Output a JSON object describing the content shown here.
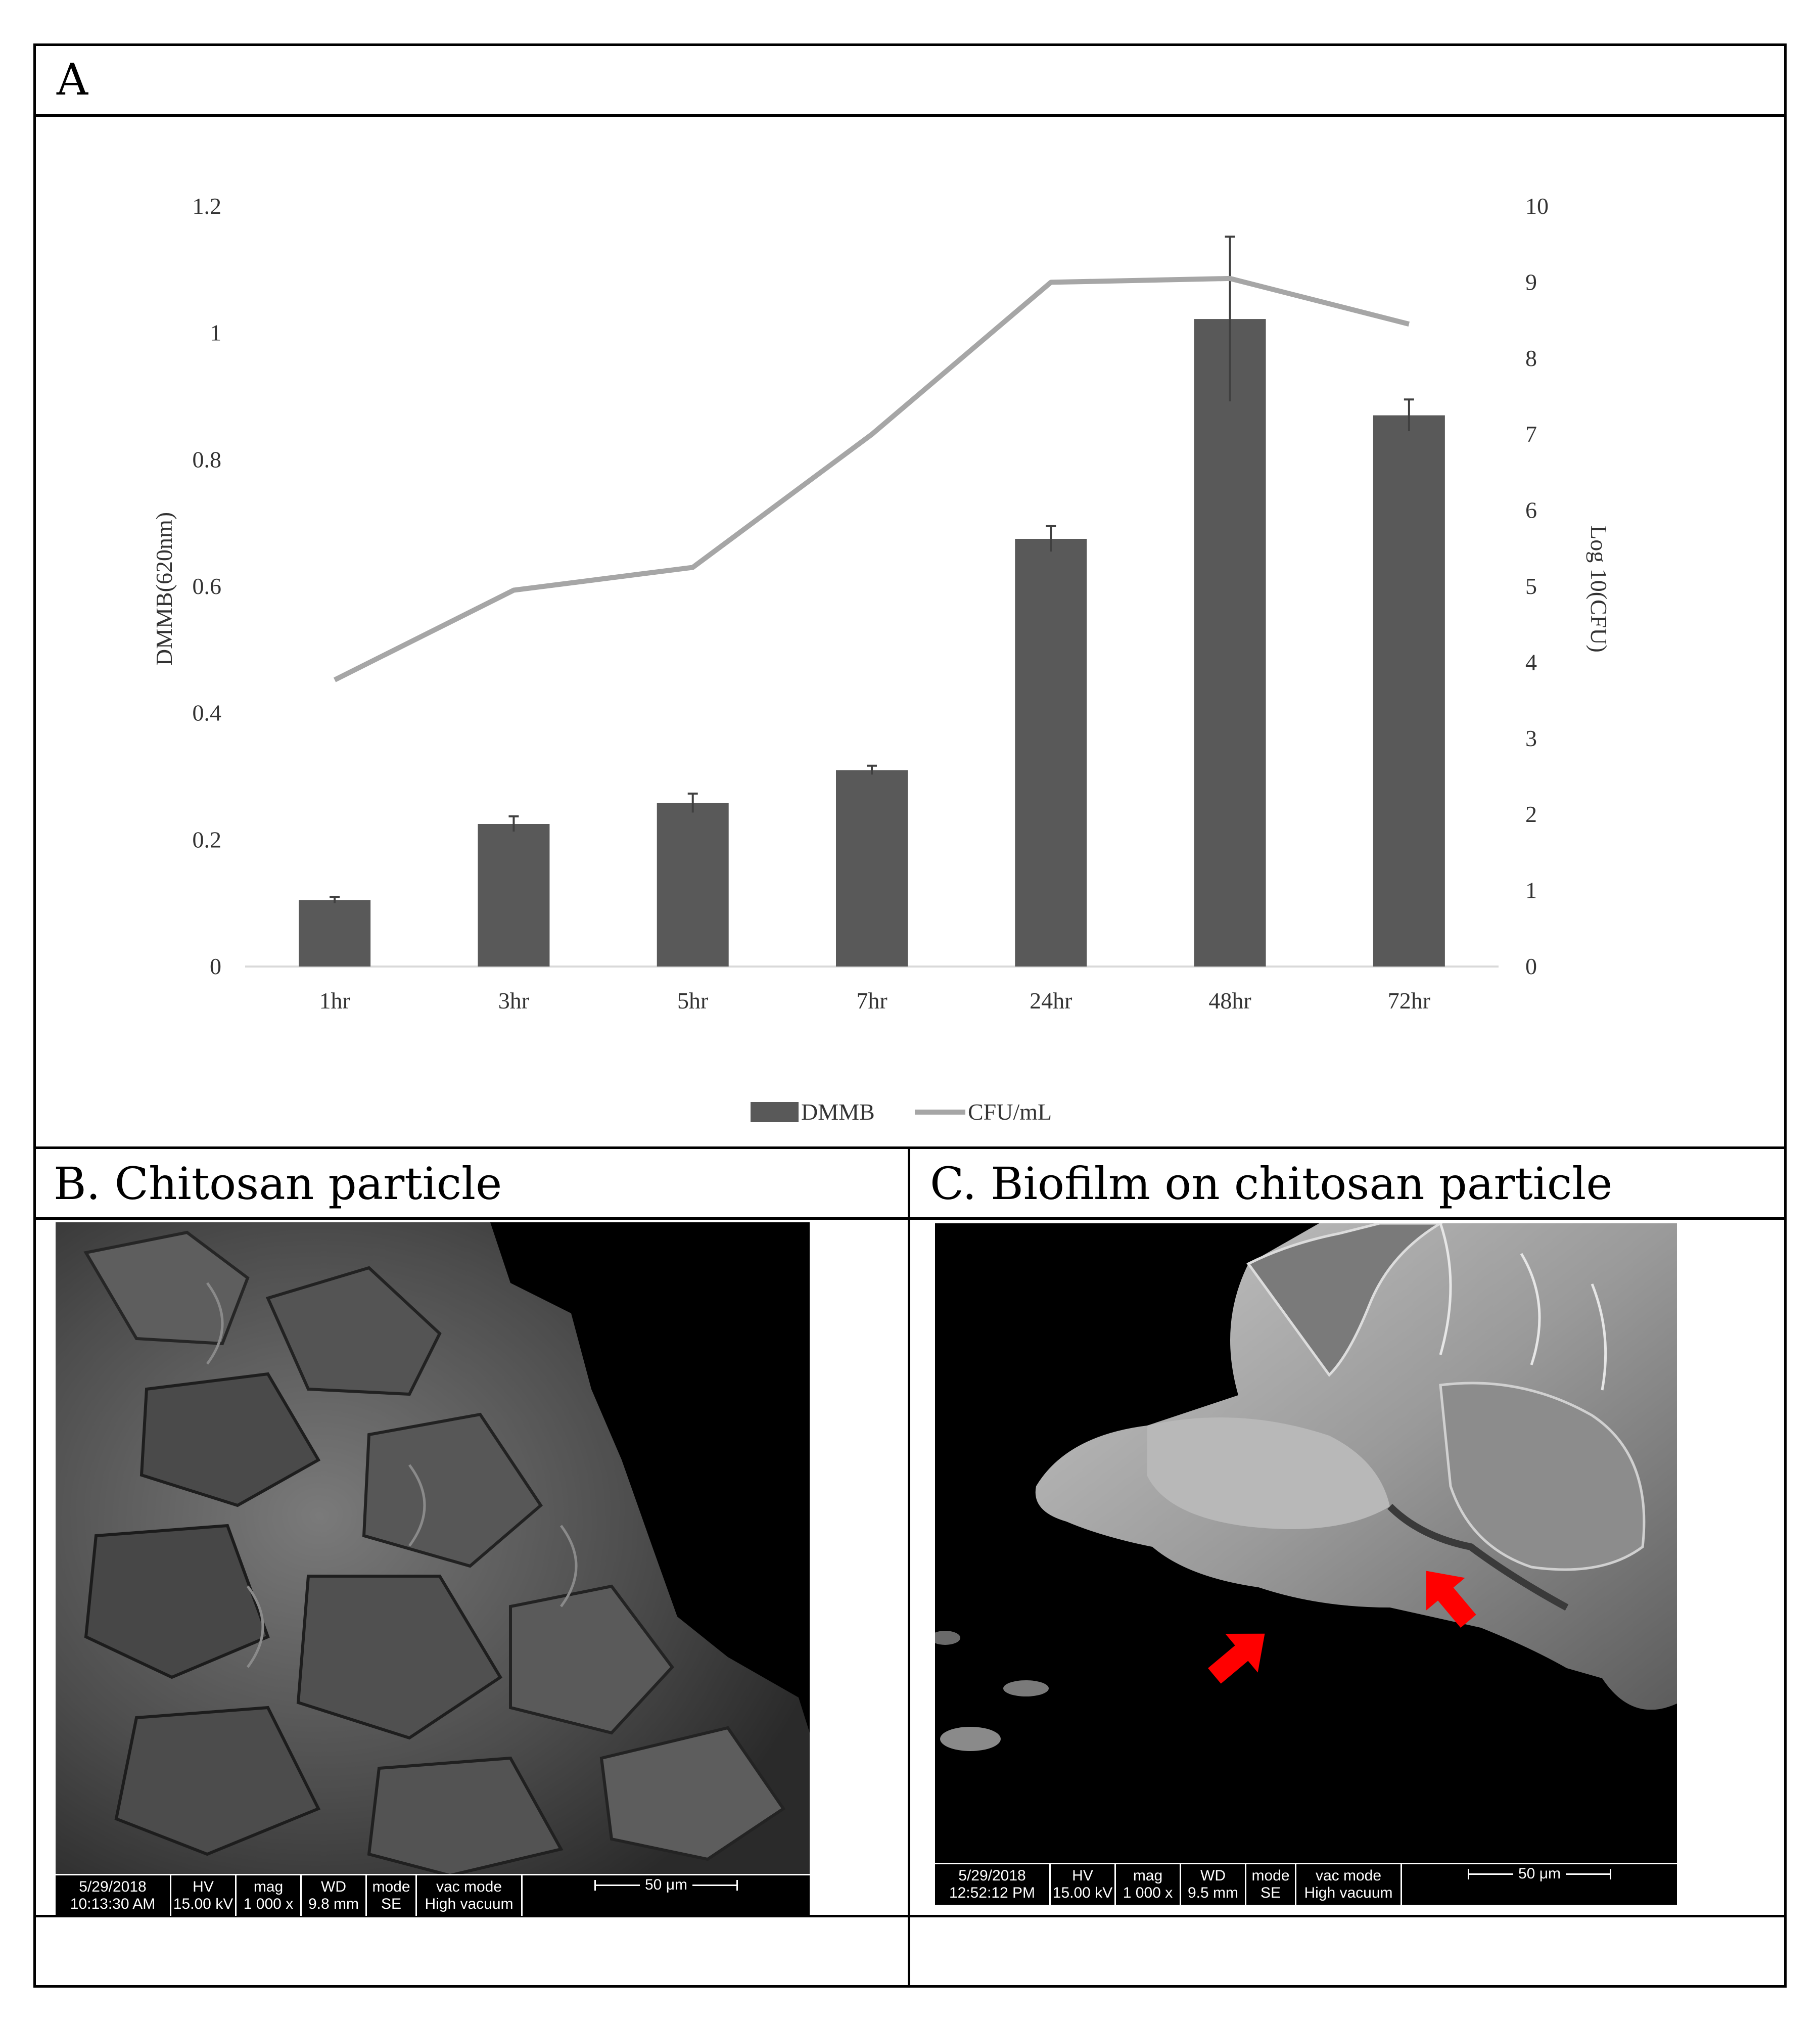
{
  "panels": {
    "a": {
      "label": "A"
    },
    "b": {
      "label": "B. Chitosan particle",
      "databar": {
        "date": "5/29/2018",
        "time": "10:13:30 AM",
        "hv_label": "HV",
        "hv": "15.00 kV",
        "mag_label": "mag",
        "mag": "1 000 x",
        "wd_label": "WD",
        "wd": "9.8 mm",
        "mode_label": "mode",
        "mode": "SE",
        "vac_label": "vac mode",
        "vac": "High vacuum",
        "scale": "50 μm"
      }
    },
    "c": {
      "label": "C. Biofilm on chitosan particle",
      "databar": {
        "date": "5/29/2018",
        "time": "12:52:12 PM",
        "hv_label": "HV",
        "hv": "15.00 kV",
        "mag_label": "mag",
        "mag": "1 000 x",
        "wd_label": "WD",
        "wd": "9.5 mm",
        "mode_label": "mode",
        "mode": "SE",
        "vac_label": "vac mode",
        "vac": "High vacuum",
        "scale": "50 μm"
      },
      "arrow_color": "#ff0000"
    }
  },
  "chart_data": {
    "type": "bar+line",
    "categories": [
      "1hr",
      "3hr",
      "5hr",
      "7hr",
      "24hr",
      "48hr",
      "72hr"
    ],
    "y_left": {
      "label": "DMMB(620nm)",
      "lim": [
        0,
        1.2
      ],
      "ticks": [
        "0",
        "0.2",
        "0.4",
        "0.6",
        "0.8",
        "1",
        "1.2"
      ]
    },
    "y_right": {
      "label": "Log 10(CFU)",
      "lim": [
        0,
        10
      ],
      "ticks": [
        "0",
        "1",
        "2",
        "3",
        "4",
        "5",
        "6",
        "7",
        "8",
        "9",
        "10"
      ]
    },
    "series": [
      {
        "name": "DMMB",
        "type": "bar",
        "axis": "left",
        "color": "#595959",
        "values": [
          0.105,
          0.225,
          0.258,
          0.31,
          0.675,
          1.022,
          0.87
        ],
        "errors": [
          0.005,
          0.012,
          0.015,
          0.007,
          0.02,
          0.13,
          0.025
        ]
      },
      {
        "name": "CFU/mL",
        "type": "line",
        "axis": "right",
        "color": "#a6a6a6",
        "values": [
          3.77,
          4.95,
          5.25,
          7.0,
          9.0,
          9.05,
          8.45
        ]
      }
    ],
    "legend": "bottom"
  }
}
